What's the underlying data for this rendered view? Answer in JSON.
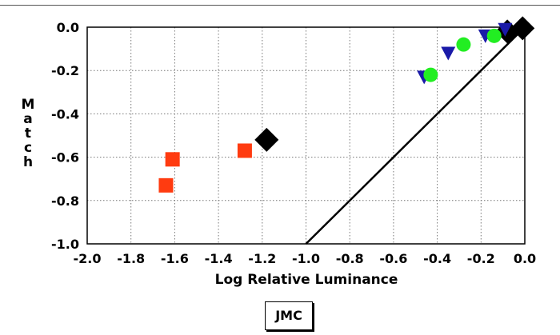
{
  "chart_data": {
    "type": "scatter",
    "xlabel": "Log Relative Luminance",
    "ylabel": "Match",
    "xlim": [
      -2.0,
      0.0
    ],
    "ylim": [
      -1.0,
      0.0
    ],
    "x_ticks": [
      "-2.0",
      "-1.8",
      "-1.6",
      "-1.4",
      "-1.2",
      "-1.0",
      "-0.8",
      "-0.6",
      "-0.4",
      "-0.2",
      "0.0"
    ],
    "y_ticks": [
      "0.0",
      "-0.2",
      "-0.4",
      "-0.6",
      "-0.8",
      "-1.0"
    ],
    "grid": true,
    "reference_line": {
      "x": [
        -1.0,
        0.0
      ],
      "y": [
        -1.0,
        0.0
      ],
      "color": "#000000"
    },
    "series": [
      {
        "marker": "square",
        "color": "#ff3b10",
        "points": [
          [
            -1.61,
            -0.61
          ],
          [
            -1.64,
            -0.73
          ],
          [
            -1.28,
            -0.57
          ]
        ]
      },
      {
        "marker": "diamond",
        "color": "#000000",
        "points": [
          [
            -1.18,
            -0.52
          ],
          [
            -0.08,
            -0.02
          ],
          [
            -0.01,
            -0.005
          ]
        ]
      },
      {
        "marker": "triangle-down",
        "color": "#1a1aa8",
        "points": [
          [
            -0.46,
            -0.23
          ],
          [
            -0.35,
            -0.12
          ],
          [
            -0.18,
            -0.04
          ],
          [
            -0.09,
            -0.01
          ]
        ]
      },
      {
        "marker": "circle",
        "color": "#22ee22",
        "points": [
          [
            -0.43,
            -0.22
          ],
          [
            -0.28,
            -0.08
          ],
          [
            -0.14,
            -0.04
          ]
        ]
      }
    ]
  },
  "caption": "JMC"
}
